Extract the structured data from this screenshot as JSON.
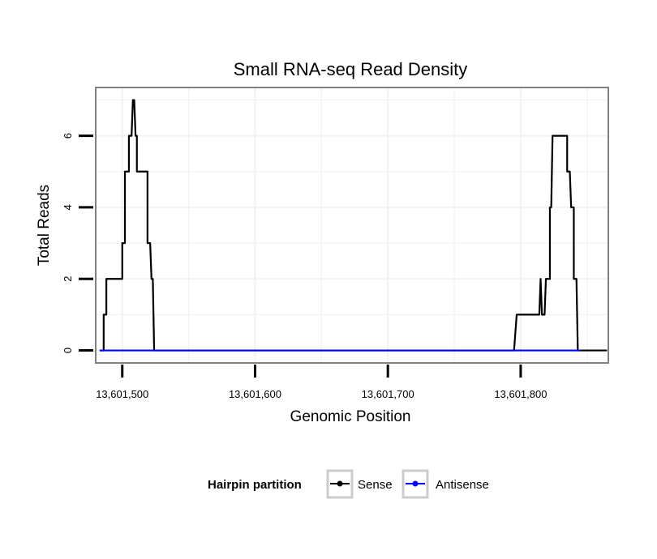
{
  "chart_data": {
    "type": "line",
    "title": "Small RNA-seq Read Density",
    "xlabel": "Genomic Position",
    "ylabel": "Total Reads",
    "xlim": [
      13601480,
      13601866
    ],
    "ylim": [
      -0.35,
      7.35
    ],
    "x_ticks": [
      13601500,
      13601600,
      13601700,
      13601800
    ],
    "x_tick_labels": [
      "13,601,500",
      "13,601,600",
      "13,601,700",
      "13,601,800"
    ],
    "y_ticks": [
      0,
      2,
      4,
      6
    ],
    "y_tick_labels": [
      "0",
      "2",
      "4",
      "6"
    ],
    "grid": true,
    "legend": {
      "title": "Hairpin partition",
      "position": "bottom",
      "entries": [
        "Sense",
        "Antisense"
      ]
    },
    "series": [
      {
        "name": "Sense",
        "color": "#000000",
        "points": [
          [
            13601483,
            0
          ],
          [
            13601486,
            0
          ],
          [
            13601486,
            1
          ],
          [
            13601488,
            1
          ],
          [
            13601488,
            2
          ],
          [
            13601500,
            2
          ],
          [
            13601500,
            3
          ],
          [
            13601502,
            3
          ],
          [
            13601502,
            5
          ],
          [
            13601505,
            5
          ],
          [
            13601505,
            6
          ],
          [
            13601507,
            6
          ],
          [
            13601508,
            7
          ],
          [
            13601509,
            7
          ],
          [
            13601510,
            6
          ],
          [
            13601511,
            6
          ],
          [
            13601511,
            5
          ],
          [
            13601519,
            5
          ],
          [
            13601519,
            3
          ],
          [
            13601521,
            3
          ],
          [
            13601522,
            2
          ],
          [
            13601523,
            2
          ],
          [
            13601524,
            0
          ],
          [
            13601795,
            0
          ],
          [
            13601797,
            1
          ],
          [
            13601814,
            1
          ],
          [
            13601815,
            2
          ],
          [
            13601816,
            1
          ],
          [
            13601818,
            1
          ],
          [
            13601819,
            2
          ],
          [
            13601822,
            2
          ],
          [
            13601822,
            4
          ],
          [
            13601823,
            4
          ],
          [
            13601824,
            6
          ],
          [
            13601835,
            6
          ],
          [
            13601835,
            5
          ],
          [
            13601837,
            5
          ],
          [
            13601838,
            4
          ],
          [
            13601840,
            4
          ],
          [
            13601840,
            2
          ],
          [
            13601842,
            2
          ],
          [
            13601843,
            0
          ],
          [
            13601865,
            0
          ]
        ]
      },
      {
        "name": "Antisense",
        "color": "#0000ff",
        "points": [
          [
            13601483,
            0
          ],
          [
            13601524,
            0
          ],
          [
            13601795,
            0
          ],
          [
            13601845,
            0
          ]
        ]
      }
    ]
  }
}
